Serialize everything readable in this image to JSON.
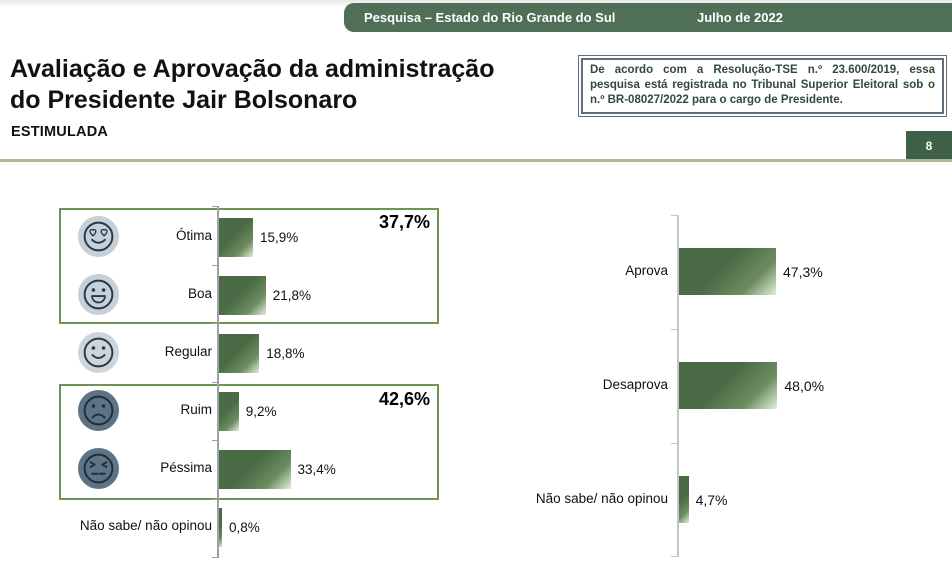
{
  "header": {
    "bar_title": "Pesquisa – Estado do Rio Grande do Sul",
    "bar_date": "Julho de 2022",
    "page_number": "8"
  },
  "title": {
    "line1": "Avaliação e Aprovação da administração",
    "line2": "do Presidente Jair Bolsonaro",
    "subtitle": "ESTIMULADA"
  },
  "note": {
    "text": "De acordo com a Resolução-TSE n.º 23.600/2019, essa pesquisa está registrada no Tribunal Superior Eleitoral sob o n.º BR-08027/2022 para o cargo de Presidente."
  },
  "chart_data": [
    {
      "type": "bar",
      "orientation": "horizontal",
      "categories": [
        "Ótima",
        "Boa",
        "Regular",
        "Ruim",
        "Péssima",
        "Não sabe/ não opinou"
      ],
      "values": [
        15.9,
        21.8,
        18.8,
        9.2,
        33.4,
        0.8
      ],
      "value_labels": [
        "15,9%",
        "21,8%",
        "18,8%",
        "9,2%",
        "33,4%",
        "0,8%"
      ],
      "icons": [
        "heart-eyes-face",
        "grin-face",
        "smile-face",
        "frown-face",
        "angry-face",
        null
      ],
      "groups": [
        {
          "label": "37,7%",
          "value": 37.7,
          "span": [
            "Ótima",
            "Boa"
          ]
        },
        {
          "label": "42,6%",
          "value": 42.6,
          "span": [
            "Ruim",
            "Péssima"
          ]
        }
      ],
      "xlim": [
        0,
        100
      ],
      "grid": false,
      "legend": false
    },
    {
      "type": "bar",
      "orientation": "horizontal",
      "categories": [
        "Aprova",
        "Desaprova",
        "Não sabe/ não opinou"
      ],
      "values": [
        47.3,
        48.0,
        4.7
      ],
      "value_labels": [
        "47,3%",
        "48,0%",
        "4,7%"
      ],
      "xlim": [
        0,
        100
      ],
      "grid": false,
      "legend": false
    }
  ],
  "colors": {
    "header_green": "#4f7057",
    "page_box_green": "#3f6148",
    "divider_green": "#a8bd96",
    "bar_dark_green": "#4b6b46",
    "bar_light_green": "#e3efda",
    "group_box_border": "#6f9455",
    "note_text_green": "#31493c",
    "note_border_gray": "#5e6f7b",
    "positive_face_badge": "#c7d0d7",
    "negative_face_badge": "#5e7384",
    "face_stroke": "#24394b"
  }
}
